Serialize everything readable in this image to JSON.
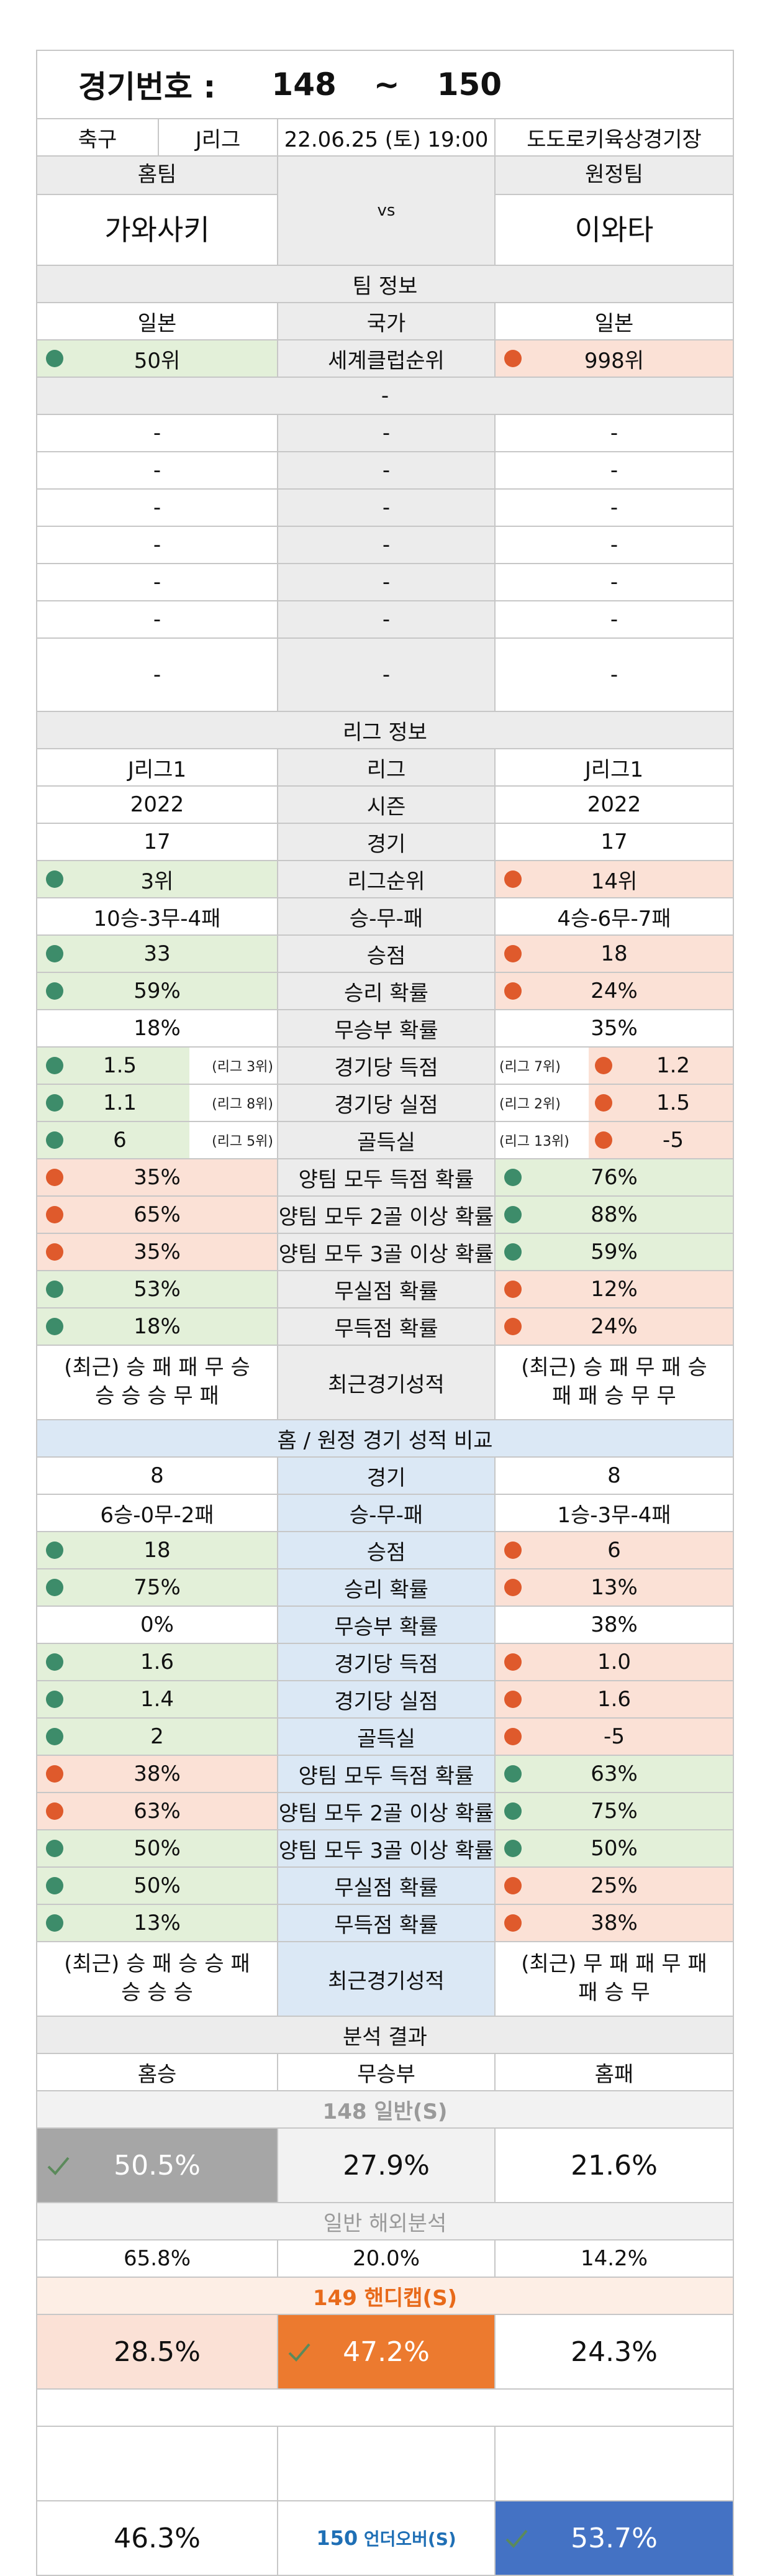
{
  "header": {
    "title_label": "경기번호 :",
    "from": "148",
    "tilde": "~",
    "to": "150"
  },
  "match": {
    "sport": "축구",
    "league": "J리그",
    "datetime": "22.06.25 (토) 19:00",
    "venue": "도도로키육상경기장",
    "home_label": "홈팀",
    "away_label": "원정팀",
    "home": "가와사키",
    "vs": "vs",
    "away": "이와타"
  },
  "team_info": {
    "title": "팀 정보",
    "home_country": "일본",
    "country_label": "국가",
    "away_country": "일본",
    "home_rank": "50위",
    "rank_label": "세계클럽순위",
    "away_rank": "998위",
    "dash": "-"
  },
  "league_info": {
    "title": "리그 정보",
    "rows": [
      {
        "h": "J리그1",
        "l": "리그",
        "a": "J리그1"
      },
      {
        "h": "2022",
        "l": "시즌",
        "a": "2022"
      },
      {
        "h": "17",
        "l": "경기",
        "a": "17"
      },
      {
        "h": "3위",
        "l": "리그순위",
        "a": "14위"
      },
      {
        "h": "10승-3무-4패",
        "l": "승-무-패",
        "a": "4승-6무-7패"
      },
      {
        "h": "33",
        "l": "승점",
        "a": "18"
      },
      {
        "h": "59%",
        "l": "승리 확률",
        "a": "24%"
      },
      {
        "h": "18%",
        "l": "무승부 확률",
        "a": "35%"
      },
      {
        "h": "1.5",
        "hr": "(리그 3위)",
        "l": "경기당 득점",
        "ar": "(리그 7위)",
        "a": "1.2"
      },
      {
        "h": "1.1",
        "hr": "(리그 8위)",
        "l": "경기당 실점",
        "ar": "(리그 2위)",
        "a": "1.5"
      },
      {
        "h": "6",
        "hr": "(리그 5위)",
        "l": "골득실",
        "ar": "(리그 13위)",
        "a": "-5"
      },
      {
        "h": "35%",
        "l": "양팀 모두 득점 확률",
        "a": "76%"
      },
      {
        "h": "65%",
        "l": "양팀 모두 2골 이상 확률",
        "a": "88%"
      },
      {
        "h": "35%",
        "l": "양팀 모두 3골 이상 확률",
        "a": "59%"
      },
      {
        "h": "53%",
        "l": "무실점 확률",
        "a": "12%"
      },
      {
        "h": "18%",
        "l": "무득점 확률",
        "a": "24%"
      }
    ],
    "recent_home_1": "(최근) 승 패 패 무 승",
    "recent_home_2": "승 승 승 무 패",
    "recent_label": "최근경기성적",
    "recent_away_1": "(최근) 승 패 무 패 승",
    "recent_away_2": "패 패 승 무 무"
  },
  "homeaway": {
    "title": "홈 / 원정 경기 성적 비교",
    "rows": [
      {
        "h": "8",
        "l": "경기",
        "a": "8"
      },
      {
        "h": "6승-0무-2패",
        "l": "승-무-패",
        "a": "1승-3무-4패"
      },
      {
        "h": "18",
        "l": "승점",
        "a": "6"
      },
      {
        "h": "75%",
        "l": "승리 확률",
        "a": "13%"
      },
      {
        "h": "0%",
        "l": "무승부 확률",
        "a": "38%"
      },
      {
        "h": "1.6",
        "l": "경기당 득점",
        "a": "1.0"
      },
      {
        "h": "1.4",
        "l": "경기당 실점",
        "a": "1.6"
      },
      {
        "h": "2",
        "l": "골득실",
        "a": "-5"
      },
      {
        "h": "38%",
        "l": "양팀 모두 득점 확률",
        "a": "63%"
      },
      {
        "h": "63%",
        "l": "양팀 모두 2골 이상 확률",
        "a": "75%"
      },
      {
        "h": "50%",
        "l": "양팀 모두 3골 이상 확률",
        "a": "50%"
      },
      {
        "h": "50%",
        "l": "무실점 확률",
        "a": "25%"
      },
      {
        "h": "13%",
        "l": "무득점 확률",
        "a": "38%"
      }
    ],
    "recent_home_1": "(최근) 승 패 승 승 패",
    "recent_home_2": "승 승 승",
    "recent_label": "최근경기성적",
    "recent_away_1": "(최근) 무 패 패 무 패",
    "recent_away_2": "패 승 무"
  },
  "analysis": {
    "title": "분석 결과",
    "col_home": "홈승",
    "col_draw": "무승부",
    "col_away": "홈패",
    "general_title": "148 일반(S)",
    "g_home": "50.5%",
    "g_draw": "27.9%",
    "g_away": "21.6%",
    "overseas_title": "일반 해외분석",
    "o_home": "65.8%",
    "o_draw": "20.0%",
    "o_away": "14.2%",
    "handicap_title": "149 핸디캡(S)",
    "h_home": "28.5%",
    "h_draw": "47.2%",
    "h_away": "24.3%",
    "uo_under": "46.3%",
    "uo_label_num": "150",
    "uo_label_text": "언더오버(S)",
    "uo_over": "53.7%"
  },
  "colors": {
    "green_bg": "#e3f0d9",
    "pink_bg": "#fbe1d6",
    "green_dot": "#3d8c6a",
    "red_dot": "#df5a2c",
    "orange": "#ec7a2f",
    "gray": "#a6a6a6",
    "blue": "#4472c4"
  }
}
